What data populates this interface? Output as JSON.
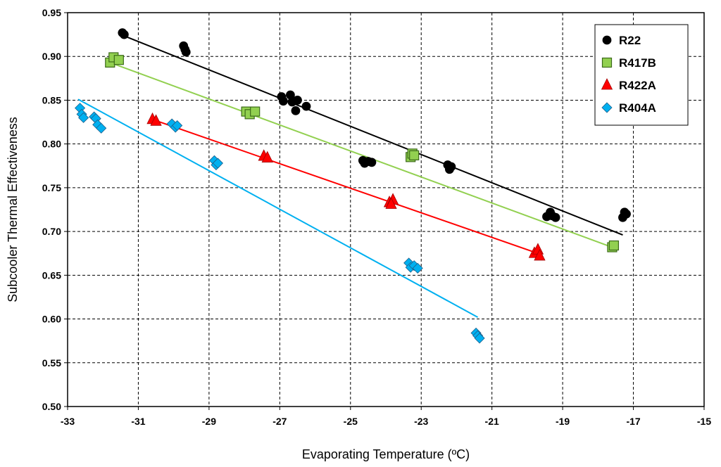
{
  "chart_data": {
    "type": "scatter",
    "xlabel": "Evaporating Temperature (ºC)",
    "ylabel": "Subcooler Thermal Effectiveness",
    "xlim": [
      -33,
      -15
    ],
    "ylim": [
      0.5,
      0.95
    ],
    "x_ticks": [
      -33,
      -31,
      -29,
      -27,
      -25,
      -23,
      -21,
      -19,
      -17,
      -15
    ],
    "y_ticks": [
      0.5,
      0.55,
      0.6,
      0.65,
      0.7,
      0.75,
      0.8,
      0.85,
      0.9,
      0.95
    ],
    "x_tick_labels": [
      "-33",
      "-31",
      "-29",
      "-27",
      "-25",
      "-23",
      "-21",
      "-19",
      "-17",
      "-15"
    ],
    "y_tick_labels": [
      "0.50",
      "0.55",
      "0.60",
      "0.65",
      "0.70",
      "0.75",
      "0.80",
      "0.85",
      "0.90",
      "0.95"
    ],
    "grid": true,
    "legend_position": "top-right",
    "series": [
      {
        "name": "R22",
        "marker": "circle",
        "color": "#000000",
        "trend_color": "#000000",
        "trendline": [
          [
            -31.5,
            0.925
          ],
          [
            -17.3,
            0.696
          ]
        ],
        "points": [
          [
            -31.45,
            0.927
          ],
          [
            -31.4,
            0.925
          ],
          [
            -29.72,
            0.912
          ],
          [
            -29.68,
            0.908
          ],
          [
            -29.65,
            0.905
          ],
          [
            -26.95,
            0.854
          ],
          [
            -26.9,
            0.849
          ],
          [
            -26.7,
            0.856
          ],
          [
            -26.65,
            0.848
          ],
          [
            -26.55,
            0.838
          ],
          [
            -26.5,
            0.85
          ],
          [
            -26.25,
            0.843
          ],
          [
            -24.65,
            0.781
          ],
          [
            -24.6,
            0.778
          ],
          [
            -24.5,
            0.78
          ],
          [
            -24.4,
            0.779
          ],
          [
            -22.25,
            0.776
          ],
          [
            -22.2,
            0.771
          ],
          [
            -22.15,
            0.774
          ],
          [
            -19.45,
            0.717
          ],
          [
            -19.35,
            0.722
          ],
          [
            -19.3,
            0.718
          ],
          [
            -19.2,
            0.716
          ],
          [
            -17.3,
            0.716
          ],
          [
            -17.25,
            0.722
          ],
          [
            -17.2,
            0.72
          ]
        ]
      },
      {
        "name": "R417B",
        "marker": "square",
        "color": "#92d050",
        "trend_color": "#92d050",
        "trendline": [
          [
            -31.8,
            0.893
          ],
          [
            -17.6,
            0.682
          ]
        ],
        "points": [
          [
            -31.8,
            0.893
          ],
          [
            -31.7,
            0.899
          ],
          [
            -31.55,
            0.896
          ],
          [
            -27.95,
            0.837
          ],
          [
            -27.85,
            0.834
          ],
          [
            -27.7,
            0.837
          ],
          [
            -23.3,
            0.785
          ],
          [
            -23.25,
            0.789
          ],
          [
            -23.2,
            0.787
          ],
          [
            -17.6,
            0.682
          ],
          [
            -17.55,
            0.684
          ]
        ]
      },
      {
        "name": "R422A",
        "marker": "triangle",
        "color": "#ff0000",
        "trend_color": "#ff0000",
        "trendline": [
          [
            -30.6,
            0.828
          ],
          [
            -19.7,
            0.675
          ]
        ],
        "points": [
          [
            -30.6,
            0.828
          ],
          [
            -30.5,
            0.826
          ],
          [
            -27.45,
            0.786
          ],
          [
            -27.35,
            0.784
          ],
          [
            -23.9,
            0.733
          ],
          [
            -23.8,
            0.736
          ],
          [
            -23.85,
            0.731
          ],
          [
            -19.8,
            0.675
          ],
          [
            -19.7,
            0.679
          ],
          [
            -19.65,
            0.672
          ]
        ]
      },
      {
        "name": "R404A",
        "marker": "diamond",
        "color": "#00b0f0",
        "trend_color": "#00b0f0",
        "trendline": [
          [
            -32.7,
            0.851
          ],
          [
            -21.4,
            0.602
          ]
        ],
        "points": [
          [
            -32.65,
            0.841
          ],
          [
            -32.6,
            0.834
          ],
          [
            -32.55,
            0.83
          ],
          [
            -32.25,
            0.831
          ],
          [
            -32.2,
            0.829
          ],
          [
            -32.15,
            0.822
          ],
          [
            -32.05,
            0.818
          ],
          [
            -30.05,
            0.823
          ],
          [
            -29.95,
            0.819
          ],
          [
            -29.9,
            0.821
          ],
          [
            -28.85,
            0.781
          ],
          [
            -28.8,
            0.776
          ],
          [
            -28.75,
            0.778
          ],
          [
            -23.35,
            0.664
          ],
          [
            -23.3,
            0.659
          ],
          [
            -23.2,
            0.661
          ],
          [
            -23.1,
            0.658
          ],
          [
            -21.45,
            0.584
          ],
          [
            -21.4,
            0.581
          ],
          [
            -21.35,
            0.578
          ]
        ]
      }
    ]
  }
}
